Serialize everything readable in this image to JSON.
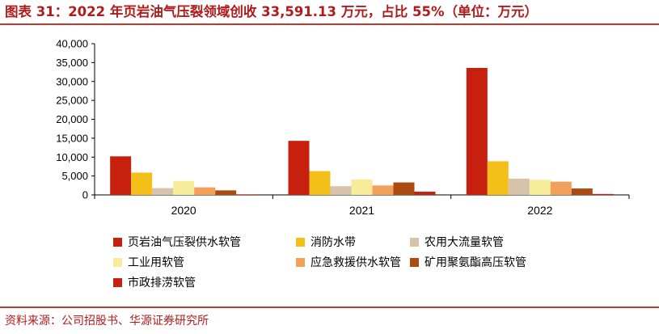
{
  "title": "图表 31：2022 年页岩油气压裂领域创收 33,591.13 万元，占比 55%（单位：万元）",
  "source": "资料来源：公司招股书、华源证券研究所",
  "chart_data": {
    "type": "bar",
    "categories": [
      "2020",
      "2021",
      "2022"
    ],
    "ylim": [
      0,
      40000
    ],
    "yticks": [
      "0",
      "5,000",
      "10,000",
      "15,000",
      "20,000",
      "25,000",
      "30,000",
      "35,000",
      "40,000"
    ],
    "grid": false,
    "legend_position": "bottom",
    "series": [
      {
        "name": "页岩油气压裂供水软管",
        "color": "#c8200f",
        "values": [
          10200,
          14300,
          33591.13
        ]
      },
      {
        "name": "消防水带",
        "color": "#f5bf1a",
        "values": [
          5900,
          6300,
          8900
        ]
      },
      {
        "name": "农用大流量软管",
        "color": "#d7c3aa",
        "values": [
          1800,
          2300,
          4300
        ]
      },
      {
        "name": "工业用软管",
        "color": "#f6ec9a",
        "values": [
          3700,
          4100,
          4000
        ]
      },
      {
        "name": "应急救援供水软管",
        "color": "#f3a05a",
        "values": [
          2000,
          2500,
          3500
        ]
      },
      {
        "name": "矿用聚氨酯高压软管",
        "color": "#ad4a12",
        "values": [
          1200,
          3300,
          1700
        ]
      },
      {
        "name": "市政排涝软管",
        "color": "#c8200f",
        "values": [
          150,
          850,
          250
        ]
      }
    ]
  }
}
